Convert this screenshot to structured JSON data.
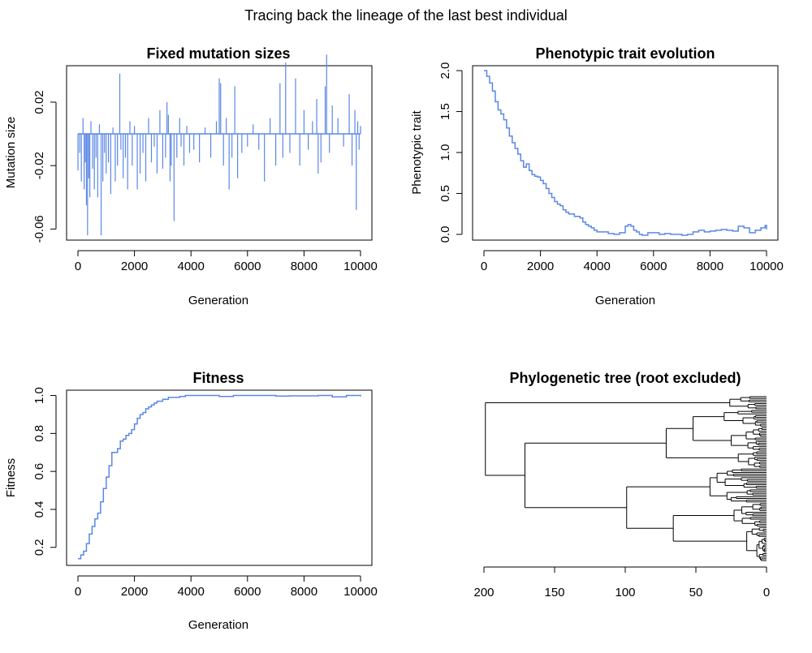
{
  "figure": {
    "title": "Tracing back the lineage of the last best individual"
  },
  "colors": {
    "series": "#5b87e6",
    "axes": "#000000",
    "tree": "#000000"
  },
  "chart_data": [
    {
      "id": "mutation",
      "type": "line",
      "title": "Fixed mutation sizes",
      "xlabel": "Generation",
      "ylabel": "Mutation size",
      "xlim": [
        0,
        10000
      ],
      "ylim": [
        -0.067,
        0.043
      ],
      "xticks": [
        0,
        2000,
        4000,
        6000,
        8000,
        10000
      ],
      "xtick_labels": [
        "0",
        "2000",
        "4000",
        "6000",
        "8000",
        "10000"
      ],
      "yticks": [
        -0.06,
        -0.02,
        0.02
      ],
      "ytick_labels": [
        "-0.06",
        "-0.02",
        "0.02"
      ],
      "baseline": 0,
      "style": "vertical spikes (histogram-like) from zero",
      "series": [
        {
          "x": [
            0,
            60,
            120,
            180,
            220,
            260,
            300,
            340,
            380,
            420,
            460,
            520,
            580,
            640,
            700,
            760,
            820,
            880,
            940,
            1000,
            1080,
            1160,
            1240,
            1320,
            1400,
            1480,
            1520,
            1600,
            1680,
            1760,
            1840,
            1920,
            2000,
            2100,
            2200,
            2300,
            2400,
            2500,
            2600,
            2700,
            2800,
            2900,
            3000,
            3100,
            3150,
            3200,
            3260,
            3300,
            3400,
            3500,
            3600,
            3650,
            3750,
            3850,
            3950,
            4100,
            4300,
            4500,
            4700,
            4900,
            5000,
            5050,
            5150,
            5250,
            5350,
            5450,
            5550,
            5650,
            5800,
            6000,
            6200,
            6400,
            6600,
            6800,
            7000,
            7150,
            7250,
            7350,
            7500,
            7700,
            7850,
            8000,
            8150,
            8300,
            8450,
            8500,
            8600,
            8750,
            8800,
            8900,
            9000,
            9200,
            9400,
            9600,
            9700,
            9800,
            9850,
            9900,
            9950,
            10000
          ],
          "y": [
            -0.023,
            -0.012,
            -0.03,
            0.01,
            -0.035,
            -0.018,
            -0.045,
            -0.064,
            -0.028,
            -0.04,
            0.008,
            -0.022,
            -0.035,
            -0.015,
            -0.04,
            0.006,
            -0.064,
            -0.03,
            -0.012,
            -0.025,
            -0.018,
            -0.038,
            0.004,
            -0.03,
            -0.02,
            0.038,
            -0.01,
            -0.028,
            -0.015,
            -0.035,
            0.008,
            -0.02,
            0.005,
            -0.035,
            -0.025,
            -0.012,
            -0.03,
            0.01,
            -0.018,
            -0.008,
            -0.025,
            0.015,
            -0.022,
            -0.015,
            0.02,
            0.012,
            -0.03,
            -0.02,
            -0.055,
            -0.015,
            0.01,
            -0.008,
            -0.02,
            0.005,
            -0.012,
            -0.01,
            -0.018,
            0.004,
            -0.015,
            0.008,
            0.035,
            0.032,
            -0.02,
            0.01,
            -0.035,
            -0.015,
            0.03,
            -0.028,
            -0.012,
            -0.008,
            0.006,
            -0.01,
            -0.03,
            0.01,
            -0.02,
            0.032,
            -0.015,
            0.045,
            -0.012,
            0.035,
            -0.02,
            0.015,
            -0.01,
            0.008,
            0.022,
            -0.025,
            -0.018,
            0.03,
            0.05,
            -0.012,
            0.018,
            0.01,
            -0.008,
            0.025,
            -0.02,
            0.015,
            -0.048,
            0.008,
            -0.01,
            0.005
          ]
        }
      ]
    },
    {
      "id": "phenotype",
      "type": "line",
      "title": "Phenotypic trait evolution",
      "xlabel": "Generation",
      "ylabel": "Phenotypic trait",
      "xlim": [
        0,
        10000
      ],
      "ylim": [
        -0.07,
        2.06
      ],
      "xticks": [
        0,
        2000,
        4000,
        6000,
        8000,
        10000
      ],
      "xtick_labels": [
        "0",
        "2000",
        "4000",
        "6000",
        "8000",
        "10000"
      ],
      "yticks": [
        0.0,
        0.5,
        1.0,
        1.5,
        2.0
      ],
      "ytick_labels": [
        "0.0",
        "0.5",
        "1.0",
        "1.5",
        "2.0"
      ],
      "series": [
        {
          "x": [
            0,
            100,
            200,
            300,
            400,
            500,
            600,
            700,
            800,
            900,
            1000,
            1100,
            1200,
            1300,
            1400,
            1500,
            1600,
            1700,
            1800,
            1900,
            2000,
            2100,
            2200,
            2300,
            2400,
            2500,
            2600,
            2700,
            2800,
            2900,
            3000,
            3100,
            3200,
            3300,
            3400,
            3500,
            3600,
            3700,
            3800,
            3900,
            4000,
            4200,
            4400,
            4600,
            4800,
            5000,
            5100,
            5200,
            5300,
            5400,
            5500,
            5600,
            5800,
            6000,
            6200,
            6400,
            6600,
            6800,
            7000,
            7200,
            7400,
            7600,
            7800,
            8000,
            8200,
            8400,
            8600,
            8800,
            9000,
            9200,
            9400,
            9600,
            9800,
            9950,
            10000
          ],
          "y": [
            2.0,
            1.93,
            1.85,
            1.75,
            1.62,
            1.52,
            1.47,
            1.4,
            1.3,
            1.2,
            1.12,
            1.05,
            0.98,
            0.9,
            0.82,
            0.86,
            0.78,
            0.73,
            0.71,
            0.7,
            0.66,
            0.62,
            0.56,
            0.5,
            0.45,
            0.4,
            0.37,
            0.35,
            0.3,
            0.27,
            0.25,
            0.25,
            0.22,
            0.22,
            0.2,
            0.15,
            0.12,
            0.1,
            0.08,
            0.05,
            0.03,
            0.03,
            0.01,
            0.0,
            0.02,
            0.1,
            0.12,
            0.1,
            0.05,
            0.03,
            0.0,
            -0.01,
            0.02,
            0.02,
            0.0,
            0.01,
            0.0,
            0.0,
            -0.01,
            0.0,
            0.03,
            0.05,
            0.03,
            0.04,
            0.05,
            0.06,
            0.05,
            0.04,
            0.1,
            0.08,
            0.02,
            0.05,
            0.08,
            0.11,
            0.06
          ]
        }
      ]
    },
    {
      "id": "fitness",
      "type": "line",
      "title": "Fitness",
      "xlabel": "Generation",
      "ylabel": "Fitness",
      "xlim": [
        0,
        10000
      ],
      "ylim": [
        0.105,
        1.028
      ],
      "xticks": [
        0,
        2000,
        4000,
        6000,
        8000,
        10000
      ],
      "xtick_labels": [
        "0",
        "2000",
        "4000",
        "6000",
        "8000",
        "10000"
      ],
      "yticks": [
        0.2,
        0.4,
        0.6,
        0.8,
        1.0
      ],
      "ytick_labels": [
        "0.2",
        "0.4",
        "0.6",
        "0.8",
        "1.0"
      ],
      "series": [
        {
          "x": [
            0,
            100,
            200,
            300,
            400,
            500,
            600,
            700,
            800,
            900,
            1000,
            1100,
            1200,
            1300,
            1400,
            1500,
            1600,
            1700,
            1800,
            1900,
            2000,
            2100,
            2200,
            2300,
            2400,
            2500,
            2600,
            2700,
            2800,
            2900,
            3000,
            3200,
            3400,
            3600,
            3800,
            4000,
            4500,
            5000,
            5500,
            6000,
            6500,
            7000,
            7500,
            8000,
            8500,
            9000,
            9500,
            10000
          ],
          "y": [
            0.14,
            0.16,
            0.18,
            0.22,
            0.27,
            0.31,
            0.35,
            0.38,
            0.44,
            0.51,
            0.57,
            0.63,
            0.7,
            0.7,
            0.72,
            0.76,
            0.77,
            0.79,
            0.8,
            0.82,
            0.85,
            0.88,
            0.9,
            0.91,
            0.93,
            0.94,
            0.95,
            0.96,
            0.97,
            0.97,
            0.98,
            0.99,
            0.99,
            0.995,
            1.0,
            1.0,
            1.0,
            0.995,
            1.0,
            1.0,
            1.0,
            0.997,
            0.998,
            0.998,
            1.0,
            0.993,
            1.0,
            0.995
          ]
        }
      ]
    }
  ],
  "tree": {
    "title": "Phylogenetic tree (root excluded)",
    "xlim": [
      200,
      0
    ],
    "xticks": [
      200,
      150,
      100,
      50,
      0
    ],
    "xtick_labels": [
      "200",
      "150",
      "100",
      "50",
      "0"
    ],
    "leaf_count": 96
  }
}
